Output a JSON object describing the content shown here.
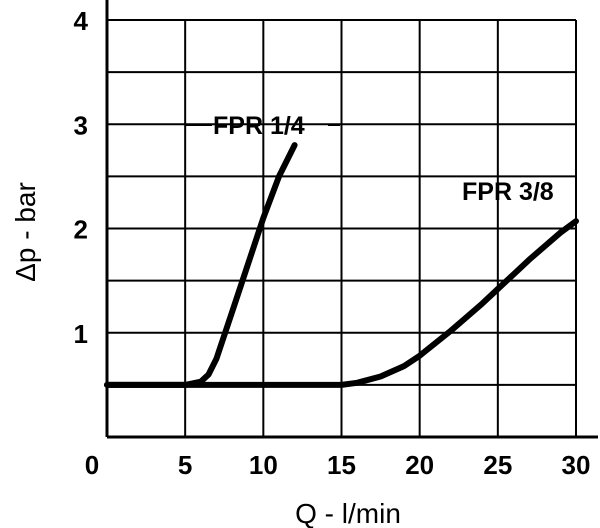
{
  "chart_data": {
    "type": "line",
    "xlabel": "Q - l/min",
    "ylabel": "Δp - bar",
    "xlim": [
      0,
      30
    ],
    "ylim": [
      0,
      4
    ],
    "x_ticks": [
      "0",
      "5",
      "10",
      "15",
      "20",
      "25",
      "30"
    ],
    "y_ticks": [
      "1",
      "2",
      "3",
      "4"
    ],
    "x_grid": [
      5,
      10,
      15,
      20,
      25,
      30
    ],
    "y_grid": [
      0.5,
      1,
      1.5,
      2,
      2.5,
      3,
      3.5,
      4
    ],
    "grid": true,
    "series": [
      {
        "name": "FPR 1/4",
        "x": [
          0,
          5,
          6,
          6.5,
          7,
          8,
          9,
          10,
          11,
          12
        ],
        "y": [
          0.5,
          0.5,
          0.53,
          0.6,
          0.75,
          1.2,
          1.65,
          2.1,
          2.5,
          2.8
        ]
      },
      {
        "name": "FPR 3/8",
        "x": [
          0,
          5,
          10,
          15,
          16,
          17.5,
          19,
          20,
          21,
          22,
          23,
          24,
          25,
          26,
          27,
          28,
          29,
          30
        ],
        "y": [
          0.5,
          0.5,
          0.5,
          0.5,
          0.52,
          0.58,
          0.68,
          0.78,
          0.9,
          1.02,
          1.15,
          1.28,
          1.42,
          1.56,
          1.7,
          1.83,
          1.96,
          2.07
        ]
      }
    ]
  }
}
